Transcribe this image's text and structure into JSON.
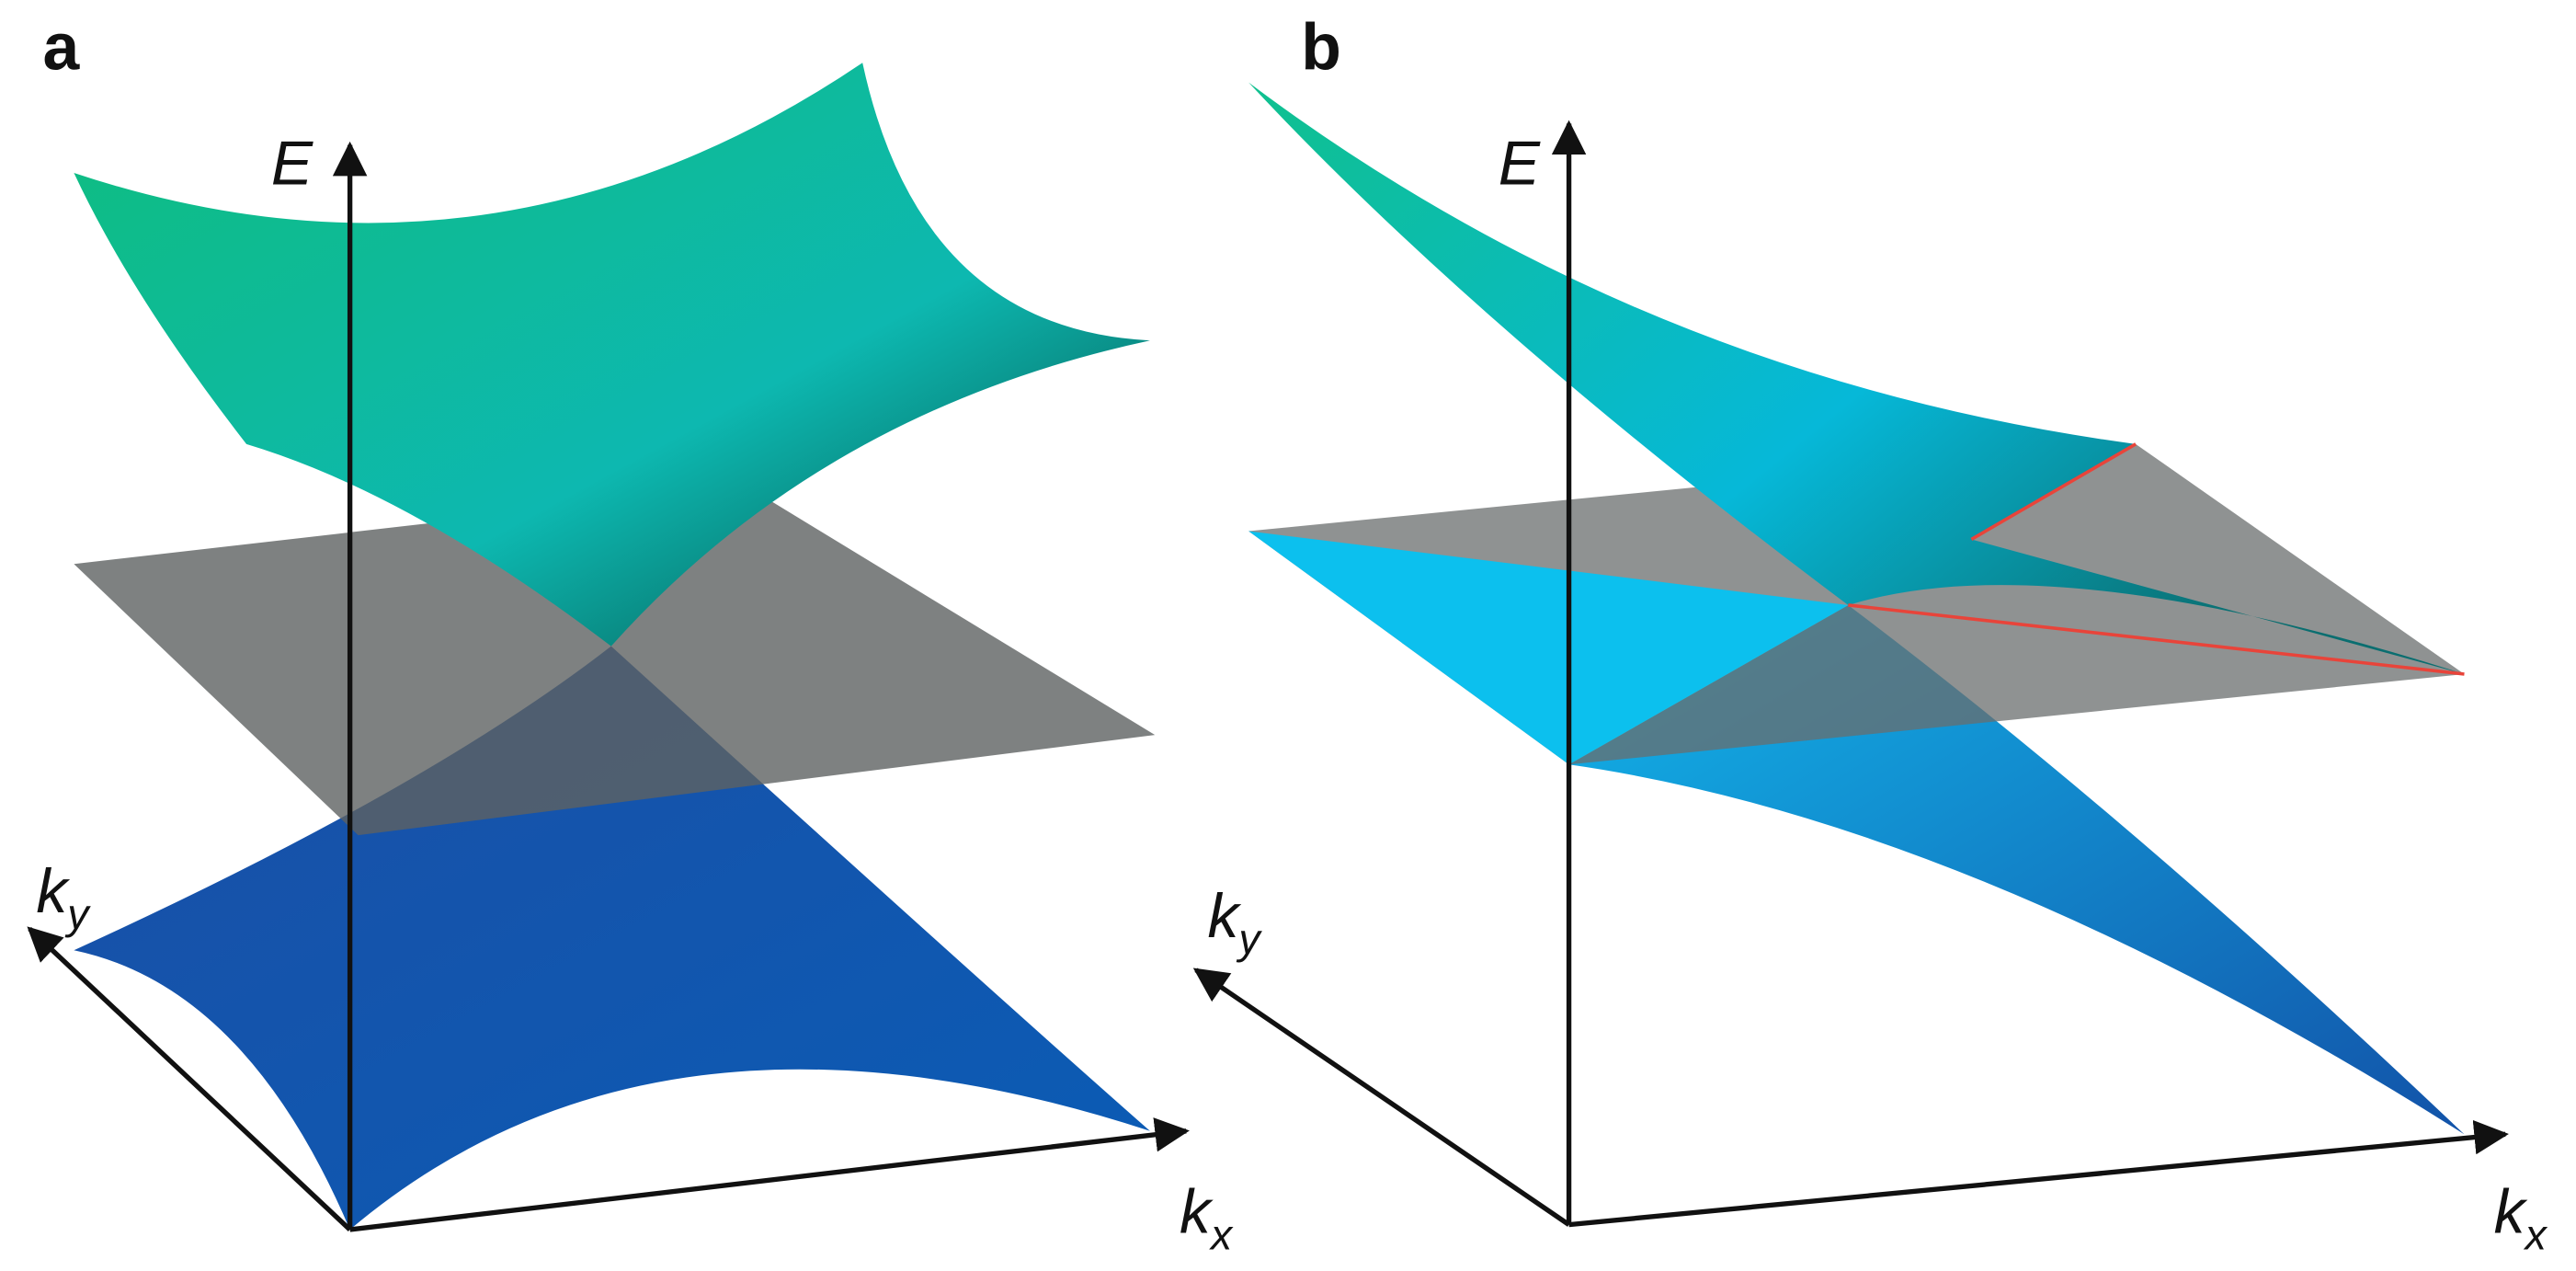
{
  "panels": [
    {
      "label": "a",
      "axes": {
        "energy": "E",
        "ky": {
          "symbol": "k",
          "subscript": "y"
        },
        "kx": {
          "symbol": "k",
          "subscript": "x"
        }
      }
    },
    {
      "label": "b",
      "axes": {
        "energy": "E",
        "ky": {
          "symbol": "k",
          "subscript": "y"
        },
        "kx": {
          "symbol": "k",
          "subscript": "x"
        }
      }
    }
  ]
}
